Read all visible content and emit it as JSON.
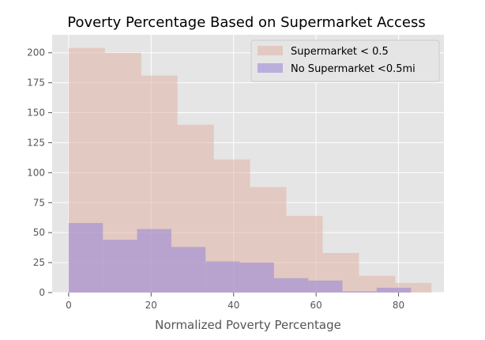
{
  "chart_data": {
    "type": "histogram",
    "title": "Poverty Percentage Based on Supermarket Access",
    "xlabel": "Normalized Poverty Percentage",
    "ylabel": "",
    "xlim": [
      -4,
      91
    ],
    "ylim": [
      0,
      215
    ],
    "xticks": [
      0,
      20,
      40,
      60,
      80
    ],
    "yticks": [
      0,
      25,
      50,
      75,
      100,
      125,
      150,
      175,
      200
    ],
    "grid": true,
    "legend_position": "top-right",
    "series": [
      {
        "name": "Supermarket < 0.5",
        "color": "#e0b3a6",
        "opacity": 0.55,
        "bin_edges": [
          0,
          8.8,
          17.6,
          26.4,
          35.2,
          44.0,
          52.8,
          61.6,
          70.4,
          79.2,
          88.0
        ],
        "values": [
          204,
          200,
          181,
          140,
          111,
          88,
          64,
          33,
          14,
          8
        ]
      },
      {
        "name": "No Supermarket <0.5mi",
        "color": "#9c8ad6",
        "opacity": 0.6,
        "bin_edges": [
          0,
          8.3,
          16.6,
          24.9,
          33.2,
          41.5,
          49.8,
          58.1,
          66.4,
          74.7,
          83.0
        ],
        "values": [
          58,
          44,
          53,
          38,
          26,
          25,
          12,
          10,
          1,
          4
        ]
      }
    ]
  }
}
